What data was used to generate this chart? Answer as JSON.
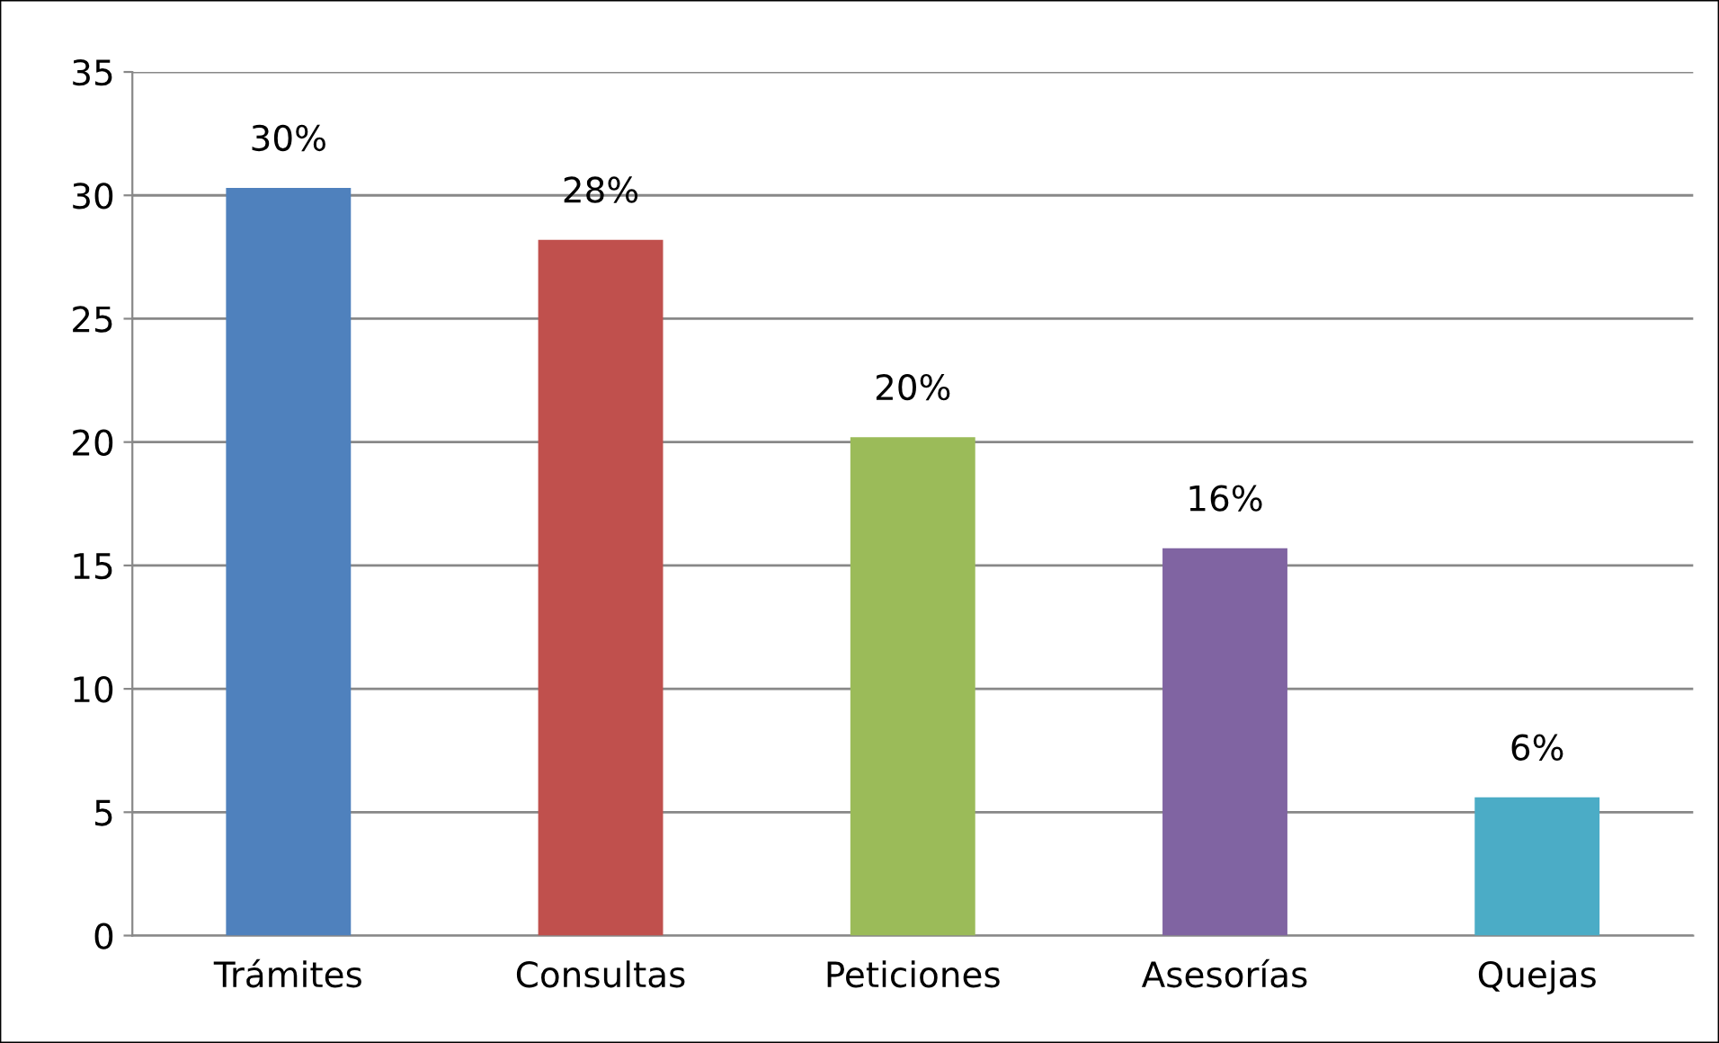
{
  "chart_data": {
    "type": "bar",
    "categories": [
      "Trámites",
      "Consultas",
      "Peticiones",
      "Asesorías",
      "Quejas"
    ],
    "values": [
      30.3,
      28.2,
      20.2,
      15.7,
      5.6
    ],
    "colors": [
      "#4f81bd",
      "#c0504d",
      "#9bbb59",
      "#8064a2",
      "#4bacc6"
    ],
    "value_labels": [
      "30%",
      "28%",
      "20%",
      "16%",
      "6%"
    ],
    "ylim": [
      0,
      35
    ],
    "yticks": [
      0,
      5,
      10,
      15,
      20,
      25,
      30,
      35
    ],
    "grid": "y",
    "legend": false
  }
}
